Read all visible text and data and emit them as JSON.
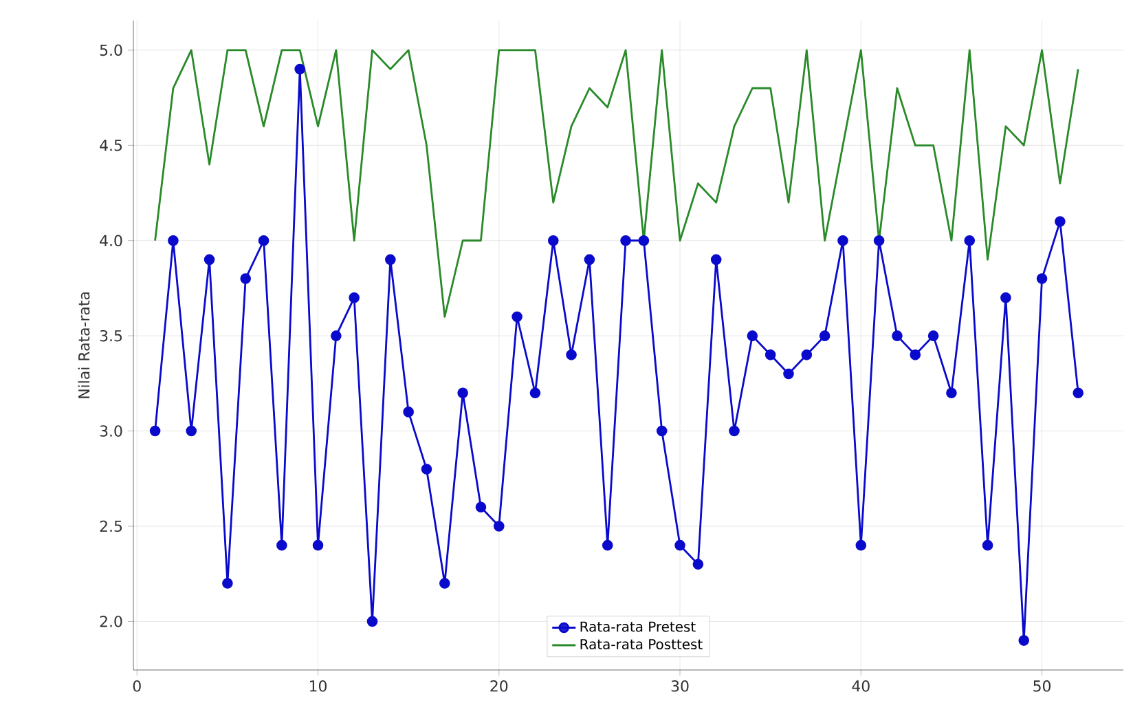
{
  "chart_data": {
    "type": "line",
    "ylabel": "Nilai Rata-rata",
    "x": [
      1,
      2,
      3,
      4,
      5,
      6,
      7,
      8,
      9,
      10,
      11,
      12,
      13,
      14,
      15,
      16,
      17,
      18,
      19,
      20,
      21,
      22,
      23,
      24,
      25,
      26,
      27,
      28,
      29,
      30,
      31,
      32,
      33,
      34,
      35,
      36,
      37,
      38,
      39,
      40,
      41,
      42,
      43,
      44,
      45,
      46,
      47,
      48,
      49,
      50,
      51,
      52
    ],
    "series": [
      {
        "name": "Rata-rata Pretest",
        "color": "#0a0acc",
        "marker": "circle",
        "values": [
          3.0,
          4.0,
          3.0,
          3.9,
          2.2,
          3.8,
          4.0,
          2.4,
          4.9,
          2.4,
          3.5,
          3.7,
          2.0,
          3.9,
          3.1,
          2.8,
          2.2,
          3.2,
          2.6,
          2.5,
          3.6,
          3.2,
          4.0,
          3.4,
          3.9,
          2.4,
          4.0,
          4.0,
          3.0,
          2.4,
          2.3,
          3.9,
          3.0,
          3.5,
          3.4,
          3.3,
          3.4,
          3.5,
          4.0,
          2.4,
          4.0,
          3.5,
          3.4,
          3.5,
          3.2,
          4.0,
          2.4,
          3.7,
          1.9,
          3.8,
          4.1,
          3.2
        ]
      },
      {
        "name": "Rata-rata Posttest",
        "color": "#2a8a2a",
        "marker": "none",
        "values": [
          4.0,
          4.8,
          5.0,
          4.4,
          5.0,
          5.0,
          4.6,
          5.0,
          5.0,
          4.6,
          5.0,
          4.0,
          5.0,
          4.9,
          5.0,
          4.5,
          3.6,
          4.0,
          4.0,
          5.0,
          5.0,
          5.0,
          4.2,
          4.6,
          4.8,
          4.7,
          5.0,
          4.0,
          5.0,
          4.0,
          4.3,
          4.2,
          4.6,
          4.8,
          4.8,
          4.2,
          5.0,
          4.0,
          4.5,
          5.0,
          4.0,
          4.8,
          4.5,
          4.5,
          4.0,
          5.0,
          3.9,
          4.6,
          4.5,
          5.0,
          4.3,
          4.9
        ]
      }
    ],
    "xlim": [
      -0.2,
      54.5
    ],
    "ylim": [
      1.745,
      5.155
    ],
    "xticks": [
      0,
      10,
      20,
      30,
      40,
      50
    ],
    "yticks": [
      {
        "value": 2,
        "label": "2.0"
      },
      2.5,
      {
        "value": 3,
        "label": "3.0"
      },
      3.5,
      {
        "value": 4,
        "label": "4.0"
      },
      4.5,
      {
        "value": 5,
        "label": "5.0"
      }
    ],
    "grid": true,
    "legend": "bottom",
    "line_style": "solid"
  }
}
